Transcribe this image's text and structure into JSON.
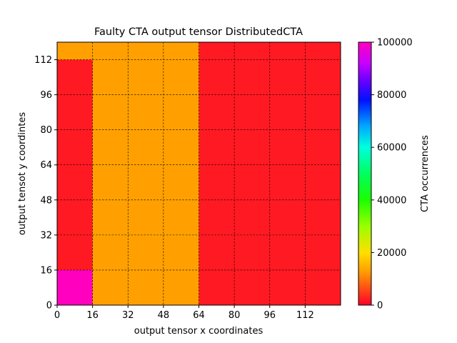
{
  "chart_data": {
    "type": "heatmap",
    "title": "Faulty CTA output tensor DistributedCTA",
    "xlabel": "output tensor x coordinates",
    "ylabel": "output tensot y coordintes",
    "xlim": [
      0,
      128
    ],
    "ylim": [
      0,
      120
    ],
    "x_ticks": [
      0,
      16,
      32,
      48,
      64,
      80,
      96,
      112
    ],
    "y_ticks": [
      0,
      16,
      32,
      48,
      64,
      80,
      96,
      112
    ],
    "grid": true,
    "colormap": "gist_rainbow (reversed)",
    "colorbar": {
      "label": "CTA occurrences",
      "min": 0,
      "max": 100000,
      "ticks": [
        0,
        20000,
        40000,
        60000,
        80000,
        100000
      ]
    },
    "cell_size": 16,
    "cells": [
      {
        "x": 0,
        "y": 0,
        "w": 16,
        "h": 16,
        "value": 100000
      },
      {
        "x": 0,
        "y": 16,
        "w": 16,
        "h": 96,
        "value": 2000
      },
      {
        "x": 0,
        "y": 112,
        "w": 16,
        "h": 8,
        "value": 13000
      },
      {
        "x": 16,
        "y": 0,
        "w": 48,
        "h": 120,
        "value": 13000
      },
      {
        "x": 64,
        "y": 0,
        "w": 64,
        "h": 120,
        "value": 2000
      }
    ]
  }
}
